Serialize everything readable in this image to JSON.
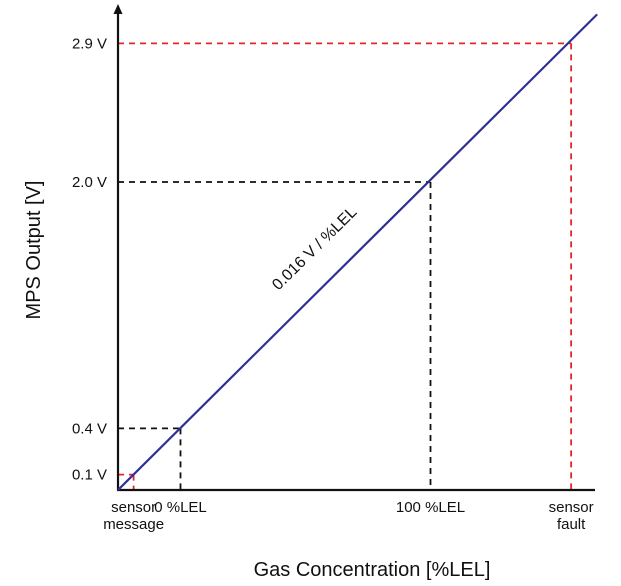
{
  "chart_data": {
    "type": "line",
    "title": "",
    "xlabel": "Gas Concentration [%LEL]",
    "ylabel": "MPS Output [V]",
    "series": [
      {
        "x": [
          -25,
          156.25
        ],
        "y": [
          0,
          2.9
        ]
      }
    ],
    "slope_label": "0.016 V / %LEL",
    "color_line": "#2e3192",
    "reference_points": [
      {
        "x": -18.75,
        "y": 0.1,
        "y_label": "0.1 V",
        "x_label_lines": [
          "sensor",
          "message"
        ],
        "color": "#e3262c"
      },
      {
        "x": 0,
        "y": 0.4,
        "y_label": "0.4 V",
        "x_label_lines": [
          "0 %LEL"
        ],
        "color": "#111111"
      },
      {
        "x": 100,
        "y": 2.0,
        "y_label": "2.0 V",
        "x_label_lines": [
          "100 %LEL"
        ],
        "color": "#111111"
      },
      {
        "x": 156.25,
        "y": 2.9,
        "y_label": "2.9 V",
        "x_label_lines": [
          "sensor",
          "fault"
        ],
        "color": "#e3262c"
      }
    ],
    "xlim": [
      -25,
      169
    ],
    "ylim": [
      0,
      3.13
    ],
    "grid": false,
    "legend": "none"
  }
}
